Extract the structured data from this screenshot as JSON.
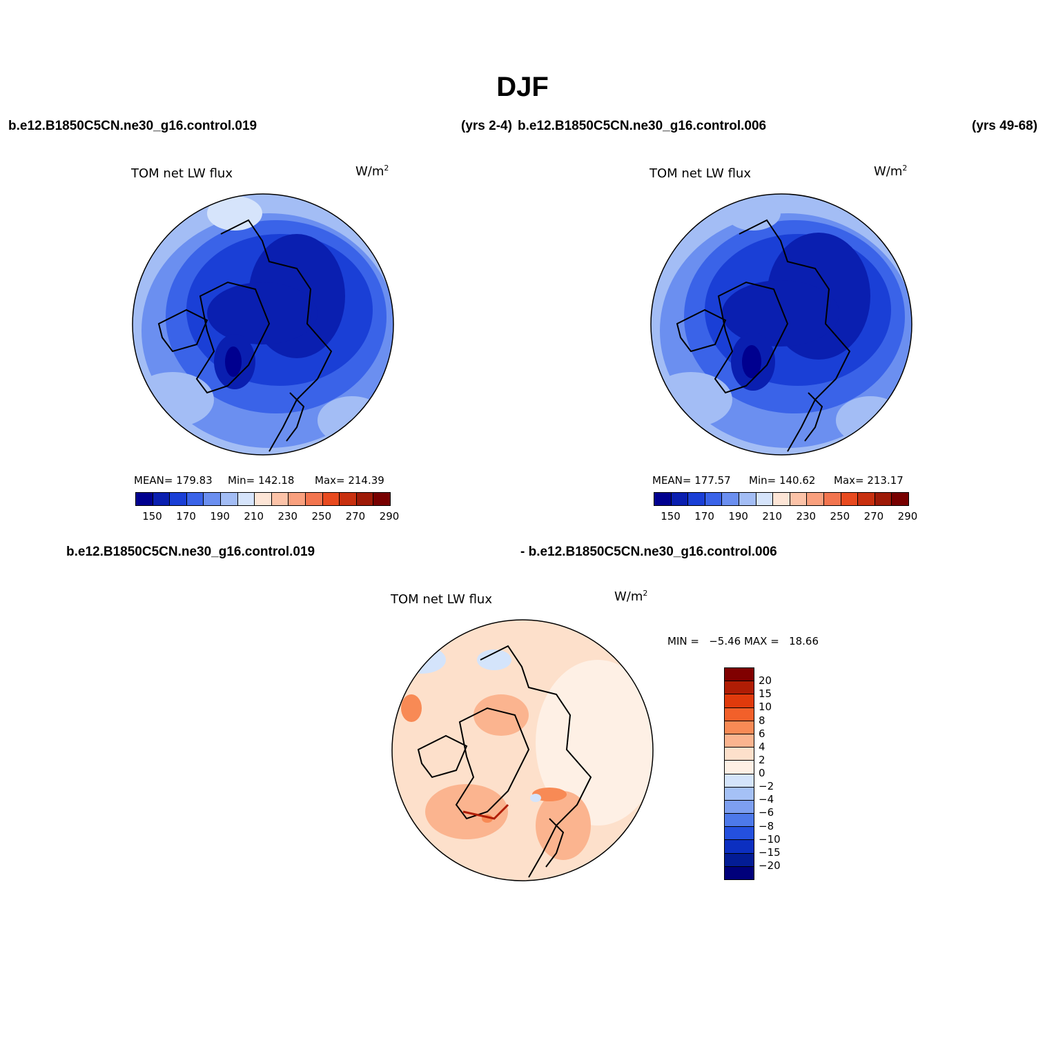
{
  "season": "DJF",
  "top_row": {
    "left_case": "b.e12.B1850C5CN.ne30_g16.control.019",
    "left_years": "(yrs 2-4)",
    "right_case": "b.e12.B1850C5CN.ne30_g16.control.006",
    "right_years": "(yrs 49-68)"
  },
  "panel1": {
    "title": "TOM net LW flux",
    "units_base": "W/m",
    "units_exp": "2",
    "mean_label": "MEAN= 179.83",
    "min_label": "Min= 142.18",
    "max_label": "Max= 214.39",
    "colorbar_labels": [
      "150",
      "170",
      "190",
      "210",
      "230",
      "250",
      "270",
      "290"
    ]
  },
  "panel2": {
    "title": "TOM net LW flux",
    "units_base": "W/m",
    "units_exp": "2",
    "mean_label": "MEAN= 177.57",
    "min_label": "Min= 140.62",
    "max_label": "Max= 213.17",
    "colorbar_labels": [
      "150",
      "170",
      "190",
      "210",
      "230",
      "250",
      "270",
      "290"
    ]
  },
  "diff_row": {
    "left_case": "b.e12.B1850C5CN.ne30_g16.control.019",
    "right_case": "- b.e12.B1850C5CN.ne30_g16.control.006"
  },
  "panel3": {
    "title": "TOM net LW flux",
    "units_base": "W/m",
    "units_exp": "2",
    "minmax_label": "MIN =   −5.46 MAX =   18.66",
    "colorbar_labels": [
      "20",
      "15",
      "10",
      "8",
      "6",
      "4",
      "2",
      "0",
      "−2",
      "−4",
      "−6",
      "−8",
      "−10",
      "−15",
      "−20"
    ]
  },
  "colors": {
    "abs_scale": [
      "#00008f",
      "#0a1fb0",
      "#1a3fd6",
      "#3a63e8",
      "#6b8ff0",
      "#a3bdf5",
      "#d6e4fb",
      "#fde5d6",
      "#fcc3a8",
      "#f9a07e",
      "#f2754f",
      "#e84a1f",
      "#c8300f",
      "#9e1a07",
      "#780000"
    ],
    "diff_scale": [
      "#800000",
      "#b01d05",
      "#e03a0c",
      "#f2602a",
      "#f88a55",
      "#fbb48f",
      "#fde0cb",
      "#fef0e5",
      "#d4e4fb",
      "#a5c1f6",
      "#7d9ff0",
      "#4d79ea",
      "#2450de",
      "#0c2fc0",
      "#031c95",
      "#00007a"
    ]
  }
}
